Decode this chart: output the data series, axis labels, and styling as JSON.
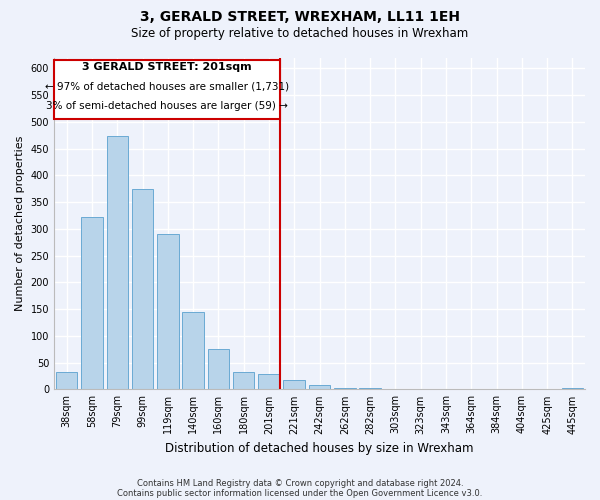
{
  "title": "3, GERALD STREET, WREXHAM, LL11 1EH",
  "subtitle": "Size of property relative to detached houses in Wrexham",
  "xlabel": "Distribution of detached houses by size in Wrexham",
  "ylabel": "Number of detached properties",
  "bar_labels": [
    "38sqm",
    "58sqm",
    "79sqm",
    "99sqm",
    "119sqm",
    "140sqm",
    "160sqm",
    "180sqm",
    "201sqm",
    "221sqm",
    "242sqm",
    "262sqm",
    "282sqm",
    "303sqm",
    "323sqm",
    "343sqm",
    "364sqm",
    "384sqm",
    "404sqm",
    "425sqm",
    "445sqm"
  ],
  "bar_values": [
    32,
    322,
    474,
    374,
    290,
    144,
    75,
    32,
    28,
    17,
    8,
    3,
    2,
    1,
    1,
    0,
    0,
    0,
    0,
    0,
    2
  ],
  "bar_color": "#b8d4ea",
  "bar_edge_color": "#6aaad4",
  "reference_bar_idx": 8,
  "reference_line_label": "3 GERALD STREET: 201sqm",
  "annotation_line1": "← 97% of detached houses are smaller (1,731)",
  "annotation_line2": "3% of semi-detached houses are larger (59) →",
  "ylim": [
    0,
    620
  ],
  "yticks": [
    0,
    50,
    100,
    150,
    200,
    250,
    300,
    350,
    400,
    450,
    500,
    550,
    600
  ],
  "box_color": "#cc0000",
  "footnote1": "Contains HM Land Registry data © Crown copyright and database right 2024.",
  "footnote2": "Contains public sector information licensed under the Open Government Licence v3.0.",
  "background_color": "#eef2fb",
  "grid_color": "#ffffff",
  "title_fontsize": 10,
  "subtitle_fontsize": 8.5,
  "ylabel_fontsize": 8,
  "xlabel_fontsize": 8.5,
  "tick_fontsize": 7,
  "footnote_fontsize": 6,
  "bar_width": 0.85
}
